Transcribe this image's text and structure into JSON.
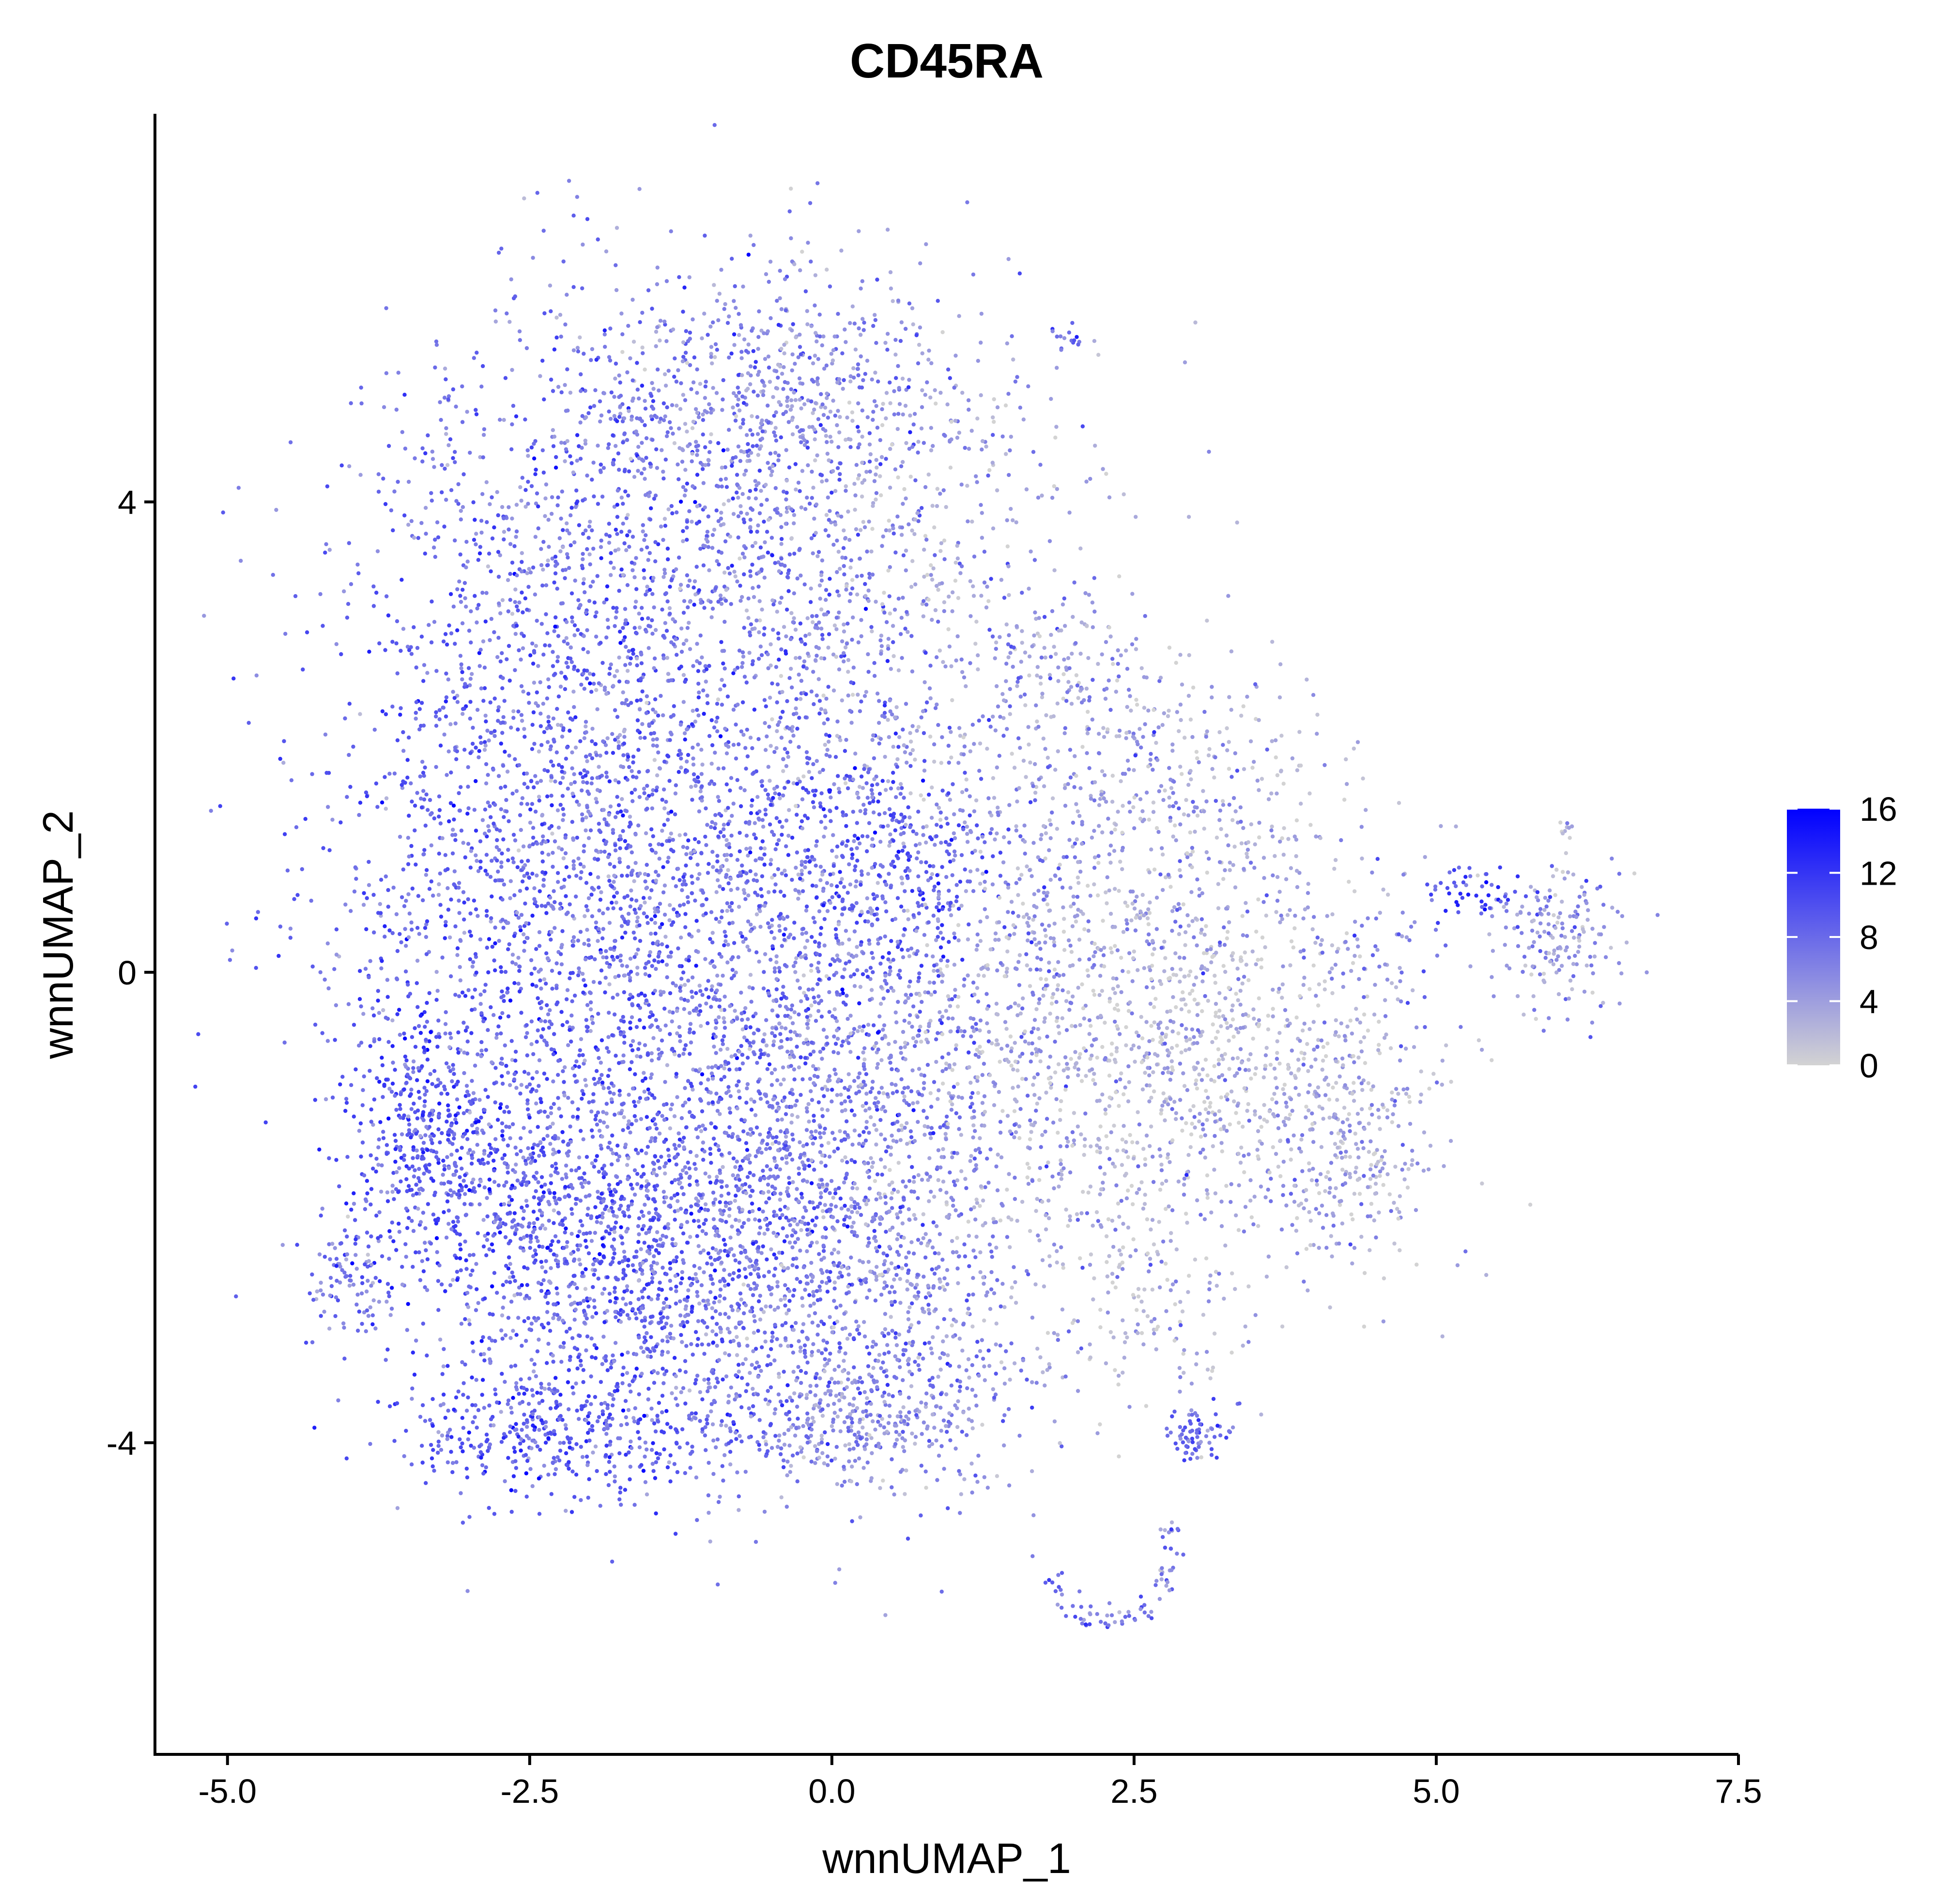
{
  "chart_data": {
    "type": "scatter",
    "title": "CD45RA",
    "xlabel": "wnnUMAP_1",
    "ylabel": "wnnUMAP_2",
    "xlim": [
      -5.6,
      7.5
    ],
    "ylim": [
      -6.65,
      7.3
    ],
    "x_ticks": [
      {
        "value": -5.0,
        "label": "-5.0"
      },
      {
        "value": -2.5,
        "label": "-2.5"
      },
      {
        "value": 0.0,
        "label": "0.0"
      },
      {
        "value": 2.5,
        "label": "2.5"
      },
      {
        "value": 5.0,
        "label": "5.0"
      },
      {
        "value": 7.5,
        "label": "7.5"
      }
    ],
    "y_ticks": [
      {
        "value": -4,
        "label": "-4"
      },
      {
        "value": 0,
        "label": "0"
      },
      {
        "value": 4,
        "label": "4"
      }
    ],
    "grid": false,
    "legend": {
      "type": "colorbar",
      "placement": "right",
      "range": [
        0,
        16
      ],
      "ticks": [
        {
          "value": 0,
          "label": "0"
        },
        {
          "value": 4,
          "label": "4"
        },
        {
          "value": 8,
          "label": "8"
        },
        {
          "value": 12,
          "label": "12"
        },
        {
          "value": 16,
          "label": "16"
        }
      ],
      "low_color": "#d3d3d3",
      "high_color": "#0000ff"
    },
    "clusters": [
      {
        "cx": -1.6,
        "cy": 3.4,
        "sx": 1.1,
        "sy": 1.2,
        "n": 1500,
        "expr": 7.5
      },
      {
        "cx": -0.3,
        "cy": 4.9,
        "sx": 0.9,
        "sy": 0.55,
        "n": 600,
        "expr": 5.5
      },
      {
        "cx": 0.5,
        "cy": 3.2,
        "sx": 0.9,
        "sy": 1.0,
        "n": 500,
        "expr": 3.5
      },
      {
        "cx": -2.6,
        "cy": 0.8,
        "sx": 0.9,
        "sy": 1.3,
        "n": 1100,
        "expr": 8.5
      },
      {
        "cx": -1.0,
        "cy": 0.6,
        "sx": 1.0,
        "sy": 1.3,
        "n": 1300,
        "expr": 7.0
      },
      {
        "cx": 0.4,
        "cy": 0.9,
        "sx": 0.5,
        "sy": 0.6,
        "n": 300,
        "expr": 9.5
      },
      {
        "cx": 1.5,
        "cy": 0.6,
        "sx": 1.0,
        "sy": 1.0,
        "n": 700,
        "expr": 4.5
      },
      {
        "cx": 3.0,
        "cy": 1.2,
        "sx": 0.8,
        "sy": 0.8,
        "n": 400,
        "expr": 3.0
      },
      {
        "cx": -3.3,
        "cy": -1.4,
        "sx": 0.35,
        "sy": 0.55,
        "n": 400,
        "expr": 9.5
      },
      {
        "cx": -2.0,
        "cy": -2.2,
        "sx": 0.8,
        "sy": 1.0,
        "n": 1400,
        "expr": 8.5
      },
      {
        "cx": -0.5,
        "cy": -2.5,
        "sx": 0.9,
        "sy": 0.9,
        "n": 1100,
        "expr": 7.0
      },
      {
        "cx": 0.7,
        "cy": -2.4,
        "sx": 0.7,
        "sy": 0.9,
        "n": 500,
        "expr": 5.0
      },
      {
        "cx": 0.0,
        "cy": -0.8,
        "sx": 0.7,
        "sy": 0.7,
        "n": 500,
        "expr": 6.0
      },
      {
        "cx": -2.2,
        "cy": -3.9,
        "sx": 0.7,
        "sy": 0.25,
        "n": 350,
        "expr": 9.0
      },
      {
        "cx": 0.2,
        "cy": -3.8,
        "sx": 0.6,
        "sy": 0.3,
        "n": 300,
        "expr": 5.0
      },
      {
        "cx": -4.0,
        "cy": -2.6,
        "sx": 0.18,
        "sy": 0.25,
        "n": 100,
        "expr": 7.0
      },
      {
        "cx": 2.2,
        "cy": -1.0,
        "sx": 0.8,
        "sy": 0.8,
        "n": 500,
        "expr": 3.0
      },
      {
        "cx": 3.3,
        "cy": -0.7,
        "sx": 0.7,
        "sy": 0.7,
        "n": 400,
        "expr": 1.5
      },
      {
        "cx": 4.2,
        "cy": -1.4,
        "sx": 0.45,
        "sy": 0.55,
        "n": 350,
        "expr": 3.5
      },
      {
        "cx": 2.6,
        "cy": -2.8,
        "sx": 0.5,
        "sy": 0.5,
        "n": 150,
        "expr": 2.0
      },
      {
        "cx": 1.8,
        "cy": 2.6,
        "sx": 0.35,
        "sy": 0.35,
        "n": 100,
        "expr": 5.0
      },
      {
        "cx": 3.0,
        "cy": -3.9,
        "sx": 0.12,
        "sy": 0.15,
        "n": 70,
        "expr": 8.0
      },
      {
        "cx": 6.0,
        "cy": 0.3,
        "sx": 0.3,
        "sy": 0.3,
        "n": 180,
        "expr": 4.5
      },
      {
        "cx": 5.3,
        "cy": 0.7,
        "sx": 0.25,
        "sy": 0.12,
        "n": 50,
        "expr": 10.0
      },
      {
        "cx": 4.5,
        "cy": 0.1,
        "sx": 0.35,
        "sy": 0.35,
        "n": 60,
        "expr": 6.0
      },
      {
        "cx": 1.95,
        "cy": 5.4,
        "sx": 0.06,
        "sy": 0.06,
        "n": 15,
        "expr": 7.0
      },
      {
        "cx": 6.1,
        "cy": 1.2,
        "sx": 0.05,
        "sy": 0.06,
        "n": 10,
        "expr": 2.0
      }
    ],
    "paths": [
      {
        "points": [
          [
            1.8,
            -5.1
          ],
          [
            2.0,
            -5.5
          ],
          [
            2.4,
            -5.5
          ],
          [
            2.75,
            -5.3
          ],
          [
            2.8,
            -4.6
          ]
        ],
        "n": 80,
        "spread": 0.05,
        "expr": 7.0
      }
    ]
  }
}
